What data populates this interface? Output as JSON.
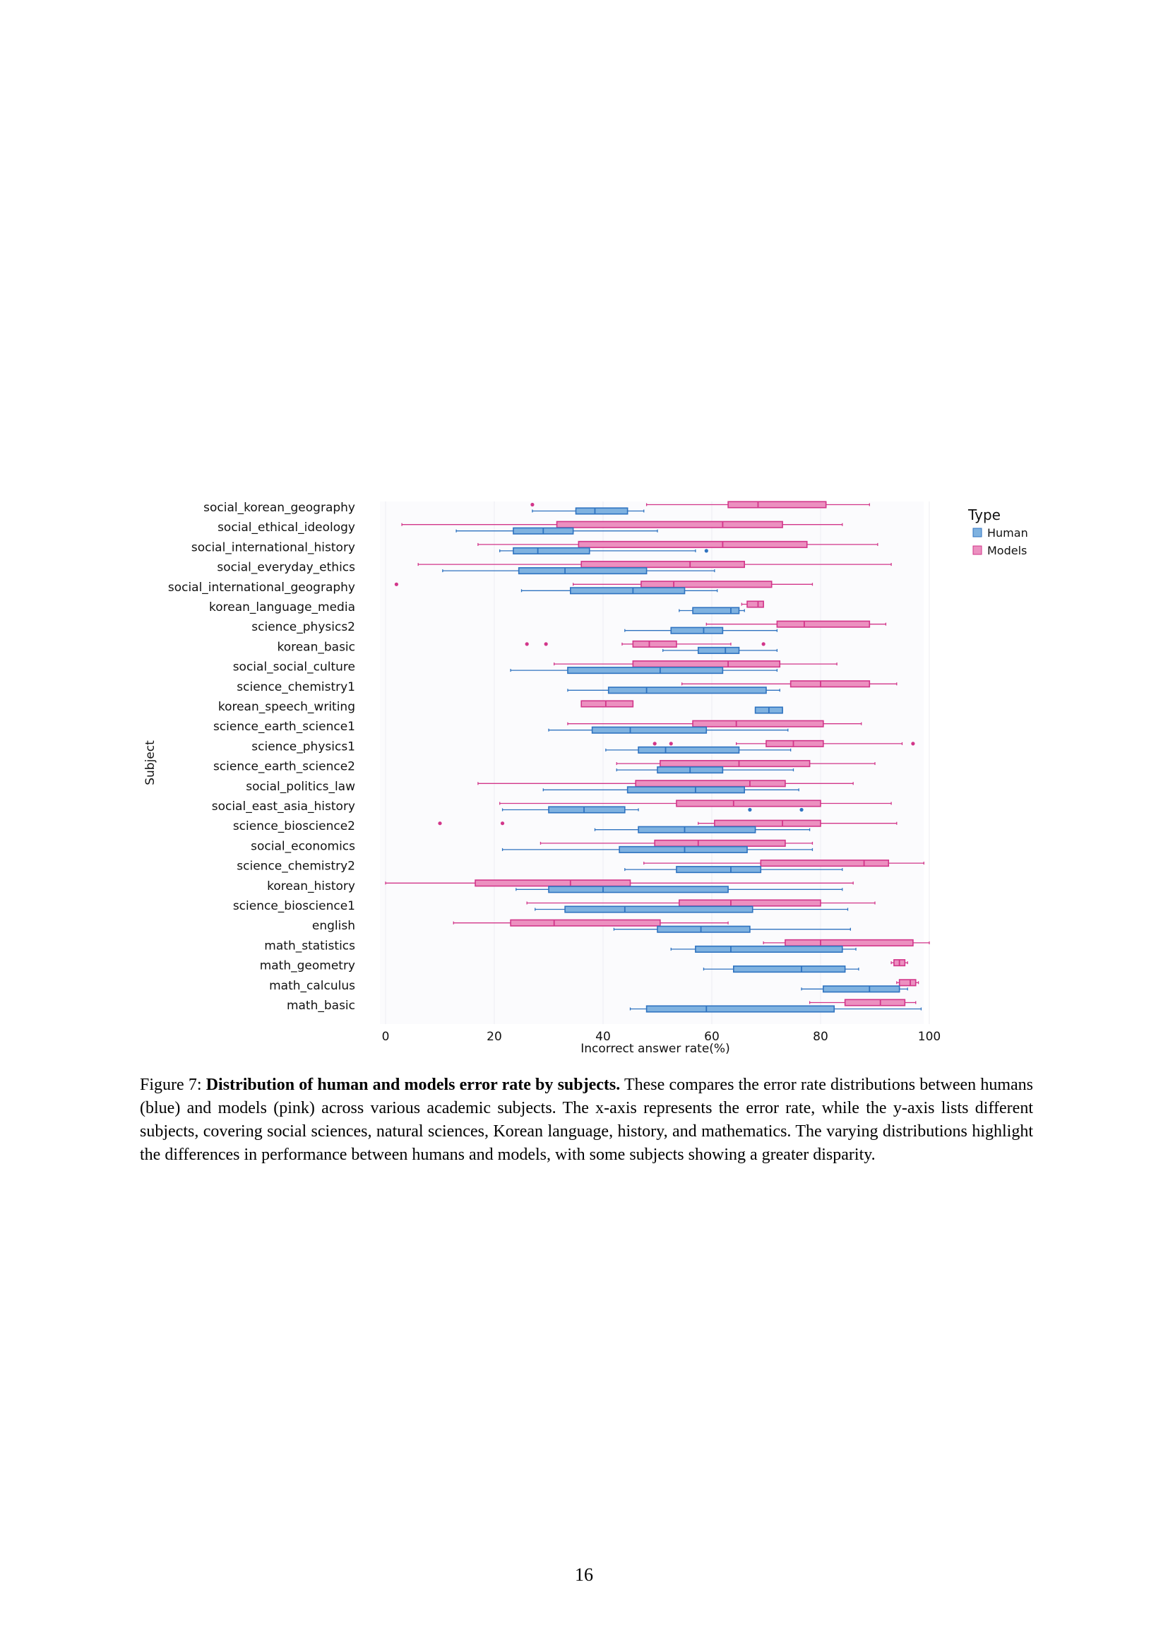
{
  "caption": {
    "label": "Figure 7:",
    "bold": "Distribution of human and models error rate by subjects.",
    "text": "These compares the error rate distributions between humans (blue) and models (pink) across various academic subjects. The x-axis represents the error rate, while the y-axis lists different subjects, covering social sciences, natural sciences, Korean language, history, and mathematics. The varying distributions highlight the differences in performance between humans and models, with some subjects showing a greater disparity."
  },
  "page_number": "16",
  "colors": {
    "human_fill": "#7fb2e0",
    "human_stroke": "#2f73c0",
    "models_fill": "#ec90c0",
    "models_stroke": "#d2368a",
    "plot_bg": "#fbfbfd",
    "grid": "#ececf2"
  },
  "chart_data": {
    "type": "box",
    "orientation": "horizontal",
    "xlabel": "Incorrect answer rate(%)",
    "ylabel": "Subject",
    "xlim": [
      0,
      100
    ],
    "xticks": [
      0,
      20,
      40,
      60,
      80,
      100
    ],
    "legend": {
      "title": "Type",
      "position": "top-right",
      "entries": [
        "Human",
        "Models"
      ]
    },
    "categories": [
      "social_korean_geography",
      "social_ethical_ideology",
      "social_international_history",
      "social_everyday_ethics",
      "social_international_geography",
      "korean_language_media",
      "science_physics2",
      "korean_basic",
      "social_social_culture",
      "science_chemistry1",
      "korean_speech_writing",
      "science_earth_science1",
      "science_physics1",
      "science_earth_science2",
      "social_politics_law",
      "social_east_asia_history",
      "science_bioscience2",
      "social_economics",
      "science_chemistry2",
      "korean_history",
      "science_bioscience1",
      "english",
      "math_statistics",
      "math_geometry",
      "math_calculus",
      "math_basic"
    ],
    "series": [
      {
        "name": "Models",
        "boxes": [
          {
            "min": 48,
            "q1": 63,
            "median": 68.5,
            "q3": 81,
            "max": 89,
            "outliers": [
              27
            ]
          },
          {
            "min": 3,
            "q1": 31.5,
            "median": 62,
            "q3": 73,
            "max": 84,
            "outliers": []
          },
          {
            "min": 17,
            "q1": 35.5,
            "median": 62,
            "q3": 77.5,
            "max": 90.5,
            "outliers": []
          },
          {
            "min": 6,
            "q1": 36,
            "median": 56,
            "q3": 66,
            "max": 93,
            "outliers": []
          },
          {
            "min": 34.5,
            "q1": 47,
            "median": 53,
            "q3": 71,
            "max": 78.5,
            "outliers": [
              2
            ]
          },
          {
            "min": 65.5,
            "q1": 66.5,
            "median": 68.5,
            "q3": 69.5,
            "max": 69.5,
            "outliers": []
          },
          {
            "min": 59,
            "q1": 72,
            "median": 77,
            "q3": 89,
            "max": 92,
            "outliers": []
          },
          {
            "min": 43.5,
            "q1": 45.5,
            "median": 48.5,
            "q3": 53.5,
            "max": 63.5,
            "outliers": [
              26,
              29.5,
              69.5
            ]
          },
          {
            "min": 31,
            "q1": 45.5,
            "median": 63,
            "q3": 72.5,
            "max": 83,
            "outliers": []
          },
          {
            "min": 54.5,
            "q1": 74.5,
            "median": 80,
            "q3": 89,
            "max": 94,
            "outliers": []
          },
          {
            "min": 36,
            "q1": 36,
            "median": 40.5,
            "q3": 45.5,
            "max": 45.5,
            "outliers": []
          },
          {
            "min": 33.5,
            "q1": 56.5,
            "median": 64.5,
            "q3": 80.5,
            "max": 87.5,
            "outliers": []
          },
          {
            "min": 64.5,
            "q1": 70,
            "median": 75,
            "q3": 80.5,
            "max": 95,
            "outliers": [
              49.5,
              52.5,
              97
            ]
          },
          {
            "min": 42.5,
            "q1": 50.5,
            "median": 65,
            "q3": 78,
            "max": 90,
            "outliers": []
          },
          {
            "min": 17,
            "q1": 46,
            "median": 67,
            "q3": 73.5,
            "max": 86,
            "outliers": []
          },
          {
            "min": 21,
            "q1": 53.5,
            "median": 64,
            "q3": 80,
            "max": 93,
            "outliers": []
          },
          {
            "min": 57.5,
            "q1": 60.5,
            "median": 73,
            "q3": 80,
            "max": 94,
            "outliers": [
              10,
              21.5
            ]
          },
          {
            "min": 28.5,
            "q1": 49.5,
            "median": 57.5,
            "q3": 73.5,
            "max": 78.5,
            "outliers": []
          },
          {
            "min": 47.5,
            "q1": 69,
            "median": 88,
            "q3": 92.5,
            "max": 99,
            "outliers": []
          },
          {
            "min": 0,
            "q1": 16.5,
            "median": 34,
            "q3": 45,
            "max": 86,
            "outliers": []
          },
          {
            "min": 26,
            "q1": 54,
            "median": 63.5,
            "q3": 80,
            "max": 90,
            "outliers": []
          },
          {
            "min": 12.5,
            "q1": 23,
            "median": 31,
            "q3": 50.5,
            "max": 63,
            "outliers": []
          },
          {
            "min": 69.5,
            "q1": 73.5,
            "median": 80,
            "q3": 97,
            "max": 100,
            "outliers": []
          },
          {
            "min": 93,
            "q1": 93.5,
            "median": 94.5,
            "q3": 95.5,
            "max": 96,
            "outliers": []
          },
          {
            "min": 94,
            "q1": 94.5,
            "median": 96.5,
            "q3": 97.5,
            "max": 98,
            "outliers": []
          },
          {
            "min": 78,
            "q1": 84.5,
            "median": 91,
            "q3": 95.5,
            "max": 97.5,
            "outliers": []
          }
        ]
      },
      {
        "name": "Human",
        "boxes": [
          {
            "min": 27,
            "q1": 35,
            "median": 38.5,
            "q3": 44.5,
            "max": 47.5,
            "outliers": []
          },
          {
            "min": 13,
            "q1": 23.5,
            "median": 29,
            "q3": 34.5,
            "max": 50,
            "outliers": []
          },
          {
            "min": 21,
            "q1": 23.5,
            "median": 28,
            "q3": 37.5,
            "max": 57,
            "outliers": [
              59
            ]
          },
          {
            "min": 10.5,
            "q1": 24.5,
            "median": 33,
            "q3": 48,
            "max": 60.5,
            "outliers": []
          },
          {
            "min": 25,
            "q1": 34,
            "median": 45.5,
            "q3": 55,
            "max": 61,
            "outliers": []
          },
          {
            "min": 54,
            "q1": 56.5,
            "median": 63.5,
            "q3": 65,
            "max": 66,
            "outliers": []
          },
          {
            "min": 44,
            "q1": 52.5,
            "median": 58.5,
            "q3": 62,
            "max": 72,
            "outliers": []
          },
          {
            "min": 51,
            "q1": 57.5,
            "median": 62.5,
            "q3": 65,
            "max": 72,
            "outliers": []
          },
          {
            "min": 23,
            "q1": 33.5,
            "median": 50.5,
            "q3": 62,
            "max": 72,
            "outliers": []
          },
          {
            "min": 33.5,
            "q1": 41,
            "median": 48,
            "q3": 70,
            "max": 72.5,
            "outliers": []
          },
          {
            "min": 68,
            "q1": 68,
            "median": 70.5,
            "q3": 73,
            "max": 73,
            "outliers": []
          },
          {
            "min": 30,
            "q1": 38,
            "median": 45,
            "q3": 59,
            "max": 74,
            "outliers": []
          },
          {
            "min": 40.5,
            "q1": 46.5,
            "median": 51.5,
            "q3": 65,
            "max": 74.5,
            "outliers": []
          },
          {
            "min": 42.5,
            "q1": 50,
            "median": 56,
            "q3": 62,
            "max": 75,
            "outliers": []
          },
          {
            "min": 29,
            "q1": 44.5,
            "median": 57,
            "q3": 66,
            "max": 76,
            "outliers": []
          },
          {
            "min": 21.5,
            "q1": 30,
            "median": 36.5,
            "q3": 44,
            "max": 46.5,
            "outliers": [
              67,
              76.5
            ]
          },
          {
            "min": 38.5,
            "q1": 46.5,
            "median": 55,
            "q3": 68,
            "max": 78,
            "outliers": []
          },
          {
            "min": 21.5,
            "q1": 43,
            "median": 55,
            "q3": 66.5,
            "max": 78.5,
            "outliers": []
          },
          {
            "min": 44,
            "q1": 53.5,
            "median": 63.5,
            "q3": 69,
            "max": 84,
            "outliers": []
          },
          {
            "min": 24,
            "q1": 30,
            "median": 40,
            "q3": 63,
            "max": 84,
            "outliers": []
          },
          {
            "min": 27.5,
            "q1": 33,
            "median": 44,
            "q3": 67.5,
            "max": 85,
            "outliers": []
          },
          {
            "min": 42,
            "q1": 50,
            "median": 58,
            "q3": 67,
            "max": 85.5,
            "outliers": []
          },
          {
            "min": 52.5,
            "q1": 57,
            "median": 63.5,
            "q3": 84,
            "max": 86.5,
            "outliers": []
          },
          {
            "min": 58.5,
            "q1": 64,
            "median": 76.5,
            "q3": 84.5,
            "max": 87,
            "outliers": []
          },
          {
            "min": 76.5,
            "q1": 80.5,
            "median": 89,
            "q3": 94.5,
            "max": 96,
            "outliers": []
          },
          {
            "min": 45,
            "q1": 48,
            "median": 59,
            "q3": 82.5,
            "max": 98.5,
            "outliers": []
          }
        ]
      }
    ]
  }
}
